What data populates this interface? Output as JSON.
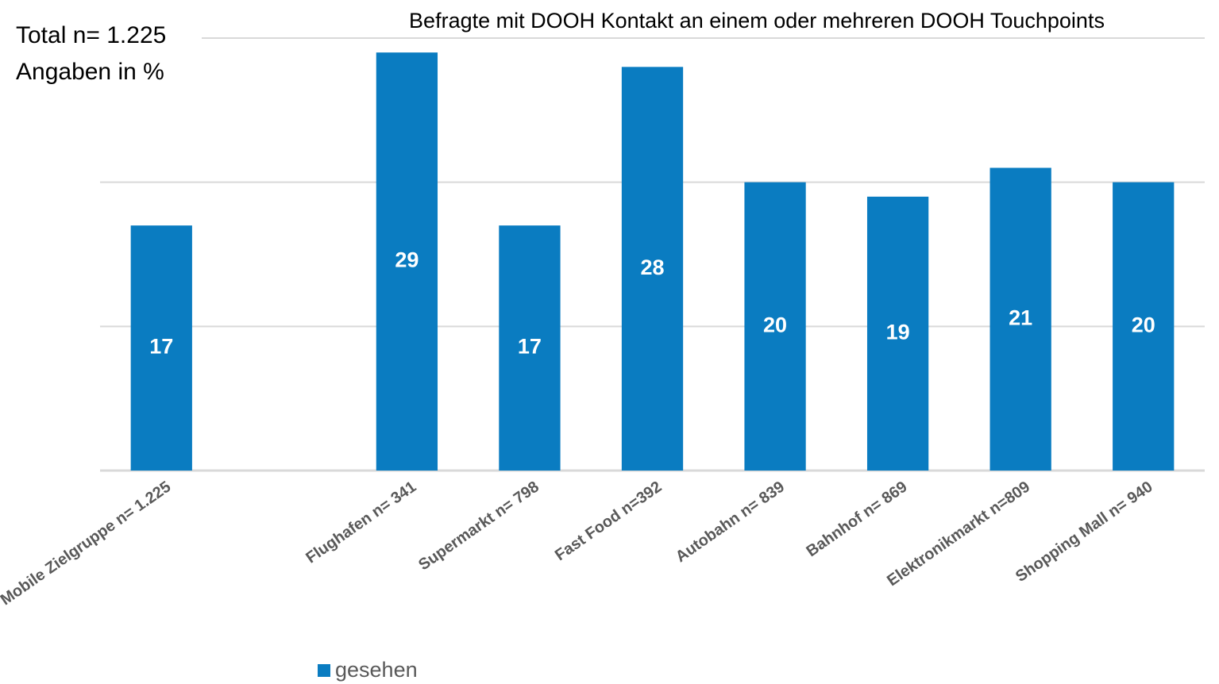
{
  "chart_data": {
    "type": "bar",
    "title": "Befragte mit DOOH Kontakt an einem oder mehreren DOOH Touchpoints",
    "annotations": [
      "Total n= 1.225",
      "Angaben in %"
    ],
    "categories": [
      "Mobile Zielgruppe n= 1.225",
      null,
      "Flughafen n= 341",
      "Supermarkt n= 798",
      "Fast Food n=392",
      "Autobahn n= 839",
      "Bahnhof n= 869",
      "Elektronikmarkt n=809",
      "Shopping Mall n= 940"
    ],
    "series": [
      {
        "name": "gesehen",
        "color": "#0a7cc1",
        "values": [
          17,
          null,
          29,
          17,
          28,
          20,
          19,
          21,
          20
        ]
      }
    ],
    "ylim": [
      0,
      30
    ],
    "yticks": [
      0,
      10,
      20,
      30
    ],
    "grid": true,
    "legend": "bottom"
  }
}
